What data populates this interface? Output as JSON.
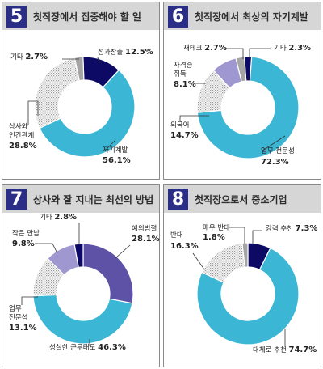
{
  "colors": {
    "header_bg": "#d6d6d6",
    "number_bg": "#2b2e86",
    "slice_navy": "#0d0a66",
    "slice_cyan": "#3cb6d5",
    "slice_dotted": "#dcdcdc",
    "slice_lavender": "#9f97d0",
    "slice_purple": "#5e52a6",
    "slice_gray": "#a5a5a5",
    "leader_line": "#333333"
  },
  "panels": [
    {
      "number": "5",
      "title": "첫직장에서 집중해야 할 일"
    },
    {
      "number": "6",
      "title": "첫직장에서 최상의 자기계발"
    },
    {
      "number": "7",
      "title": "상사와 잘 지내는 최선의 방법"
    },
    {
      "number": "8",
      "title": "첫직장으로서 중소기업"
    }
  ],
  "chart_data": [
    {
      "type": "pie",
      "title": "첫직장에서 집중해야 할 일",
      "slices": [
        {
          "label": "성과창출",
          "value": 12.5,
          "display": "12.5%",
          "color": "#0d0a66"
        },
        {
          "label": "자기계발",
          "value": 56.1,
          "display": "56.1%",
          "color": "#3cb6d5"
        },
        {
          "label": "상사와 인간관계",
          "value": 28.8,
          "display": "28.8%",
          "color": "#dcdcdc"
        },
        {
          "label": "기타",
          "value": 2.7,
          "display": "2.7%",
          "color": "#a5a5a5"
        }
      ]
    },
    {
      "type": "pie",
      "title": "첫직장에서 최상의 자기계발",
      "slices": [
        {
          "label": "기타",
          "value": 2.3,
          "display": "2.3%",
          "color": "#0d0a66"
        },
        {
          "label": "업무 전문성",
          "value": 72.3,
          "display": "72.3%",
          "color": "#3cb6d5"
        },
        {
          "label": "외국어",
          "value": 14.7,
          "display": "14.7%",
          "color": "#dcdcdc"
        },
        {
          "label": "자격증 취득",
          "value": 8.1,
          "display": "8.1%",
          "color": "#9f97d0"
        },
        {
          "label": "재테크",
          "value": 2.7,
          "display": "2.7%",
          "color": "#a5a5a5"
        }
      ]
    },
    {
      "type": "pie",
      "title": "상사와 잘 지내는 최선의 방법",
      "slices": [
        {
          "label": "예의범절",
          "value": 28.1,
          "display": "28.1%",
          "color": "#5e52a6"
        },
        {
          "label": "성실한 근무태도",
          "value": 46.3,
          "display": "46.3%",
          "color": "#3cb6d5"
        },
        {
          "label": "업무 전문성",
          "value": 13.1,
          "display": "13.1%",
          "color": "#dcdcdc"
        },
        {
          "label": "작은 만남",
          "value": 9.8,
          "display": "9.8%",
          "color": "#9f97d0"
        },
        {
          "label": "기타",
          "value": 2.8,
          "display": "2.8%",
          "color": "#0d0a66"
        }
      ]
    },
    {
      "type": "pie",
      "title": "첫직장으로서 중소기업",
      "slices": [
        {
          "label": "강력 추천",
          "value": 7.3,
          "display": "7.3%",
          "color": "#0d0a66"
        },
        {
          "label": "대체로 추천",
          "value": 74.7,
          "display": "74.7%",
          "color": "#3cb6d5"
        },
        {
          "label": "반대",
          "value": 16.3,
          "display": "16.3%",
          "color": "#dcdcdc"
        },
        {
          "label": "매우 반대",
          "value": 1.8,
          "display": "1.8%",
          "color": "#a5a5a5"
        }
      ]
    }
  ]
}
